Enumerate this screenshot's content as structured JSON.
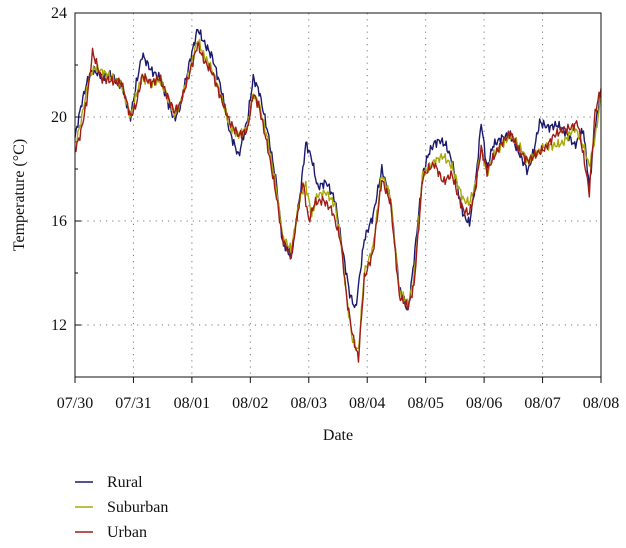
{
  "chart_data": {
    "type": "line",
    "xlabel": "Date",
    "ylabel": "Temperature (°C)",
    "x_ticks": [
      "07/30",
      "07/31",
      "08/01",
      "08/02",
      "08/03",
      "08/04",
      "08/05",
      "08/06",
      "08/07",
      "08/08"
    ],
    "y_ticks": [
      12,
      16,
      20,
      24
    ],
    "xlim": [
      0,
      9
    ],
    "ylim": [
      10,
      24
    ],
    "grid": true,
    "legend_position": "bottom-left",
    "x_unit": "days from 07/30 00:00",
    "series": [
      {
        "name": "Rural",
        "color": "#1c1a6e",
        "x": [
          0,
          0.1,
          0.2,
          0.3,
          0.45,
          0.6,
          0.8,
          0.95,
          1.05,
          1.15,
          1.3,
          1.45,
          1.6,
          1.7,
          1.8,
          1.95,
          2.1,
          2.2,
          2.35,
          2.5,
          2.65,
          2.8,
          2.95,
          3.05,
          3.15,
          3.3,
          3.45,
          3.55,
          3.7,
          3.85,
          3.95,
          4.05,
          4.15,
          4.3,
          4.45,
          4.55,
          4.7,
          4.8,
          4.95,
          5.1,
          5.25,
          5.4,
          5.55,
          5.7,
          5.8,
          5.95,
          6.05,
          6.15,
          6.25,
          6.35,
          6.45,
          6.55,
          6.65,
          6.75,
          6.85,
          6.95,
          7.05,
          7.15,
          7.3,
          7.45,
          7.6,
          7.75,
          7.85,
          7.95,
          8.1,
          8.25,
          8.4,
          8.55,
          8.7,
          8.8,
          8.9,
          9.0
        ],
        "values": [
          19.2,
          20.4,
          21.3,
          21.8,
          21.6,
          21.6,
          21.2,
          20.0,
          21.3,
          22.4,
          21.8,
          21.5,
          20.5,
          19.9,
          20.4,
          22.0,
          23.4,
          22.9,
          22.3,
          21.1,
          19.4,
          18.5,
          19.9,
          21.5,
          21.0,
          19.4,
          17.4,
          15.2,
          14.6,
          17.0,
          19.0,
          18.4,
          17.3,
          17.5,
          16.8,
          15.3,
          13.2,
          12.6,
          15.3,
          16.2,
          18.0,
          16.8,
          13.4,
          12.5,
          14.5,
          17.8,
          18.6,
          19.0,
          19.1,
          18.9,
          18.3,
          17.2,
          16.2,
          15.9,
          17.4,
          19.8,
          18.0,
          18.9,
          19.2,
          19.3,
          18.6,
          17.9,
          18.7,
          19.8,
          19.6,
          19.7,
          19.4,
          18.9,
          19.5,
          17.3,
          19.6,
          21.0
        ]
      },
      {
        "name": "Suburban",
        "color": "#a8a80a",
        "x": [
          0,
          0.1,
          0.25,
          0.35,
          0.5,
          0.65,
          0.8,
          0.95,
          1.05,
          1.15,
          1.3,
          1.45,
          1.6,
          1.7,
          1.8,
          1.95,
          2.1,
          2.2,
          2.35,
          2.5,
          2.65,
          2.8,
          2.95,
          3.05,
          3.15,
          3.3,
          3.45,
          3.55,
          3.7,
          3.85,
          3.95,
          4.05,
          4.15,
          4.3,
          4.45,
          4.55,
          4.65,
          4.75,
          4.85,
          4.95,
          5.1,
          5.25,
          5.4,
          5.55,
          5.7,
          5.8,
          5.95,
          6.05,
          6.15,
          6.3,
          6.45,
          6.55,
          6.65,
          6.75,
          6.85,
          6.95,
          7.05,
          7.15,
          7.3,
          7.45,
          7.6,
          7.75,
          7.9,
          8.05,
          8.2,
          8.35,
          8.55,
          8.7,
          8.8,
          8.9,
          9.0
        ],
        "values": [
          18.9,
          19.8,
          21.6,
          21.9,
          21.7,
          21.5,
          21.2,
          20.0,
          20.9,
          21.5,
          21.3,
          21.4,
          20.7,
          20.1,
          20.5,
          21.7,
          23.0,
          22.4,
          21.8,
          20.8,
          19.6,
          19.3,
          19.6,
          20.9,
          20.5,
          19.1,
          17.2,
          15.4,
          14.9,
          16.9,
          17.4,
          16.2,
          17.0,
          17.1,
          16.6,
          15.2,
          13.0,
          11.4,
          11.0,
          14.0,
          15.0,
          17.8,
          16.9,
          13.3,
          12.8,
          13.8,
          17.8,
          18.0,
          18.3,
          18.5,
          18.1,
          17.4,
          16.8,
          16.7,
          17.4,
          18.8,
          17.8,
          18.5,
          18.9,
          19.3,
          18.9,
          18.3,
          18.6,
          18.9,
          18.9,
          19.0,
          19.6,
          18.9,
          18.1,
          19.2,
          20.8
        ]
      },
      {
        "name": "Urban",
        "color": "#a11c14",
        "x": [
          0,
          0.1,
          0.2,
          0.3,
          0.45,
          0.6,
          0.8,
          0.95,
          1.05,
          1.15,
          1.3,
          1.45,
          1.6,
          1.7,
          1.8,
          1.95,
          2.1,
          2.2,
          2.35,
          2.5,
          2.65,
          2.8,
          2.95,
          3.05,
          3.15,
          3.3,
          3.45,
          3.55,
          3.7,
          3.8,
          3.9,
          4.0,
          4.1,
          4.25,
          4.4,
          4.55,
          4.65,
          4.75,
          4.85,
          4.95,
          5.1,
          5.25,
          5.4,
          5.55,
          5.7,
          5.8,
          5.95,
          6.05,
          6.15,
          6.3,
          6.45,
          6.55,
          6.65,
          6.75,
          6.85,
          6.95,
          7.05,
          7.15,
          7.3,
          7.45,
          7.6,
          7.75,
          7.9,
          8.05,
          8.2,
          8.35,
          8.5,
          8.6,
          8.7,
          8.8,
          8.9,
          9.0
        ],
        "values": [
          18.7,
          19.4,
          20.6,
          22.5,
          21.5,
          21.4,
          21.3,
          20.0,
          20.5,
          21.6,
          21.3,
          21.5,
          20.7,
          20.2,
          20.5,
          21.6,
          22.8,
          22.2,
          21.7,
          20.7,
          19.8,
          19.3,
          19.5,
          20.9,
          20.4,
          18.8,
          16.9,
          15.3,
          14.6,
          16.2,
          17.5,
          16.0,
          16.7,
          16.8,
          16.4,
          15.2,
          13.0,
          11.6,
          10.7,
          13.8,
          14.8,
          17.6,
          16.7,
          13.1,
          12.7,
          13.5,
          17.7,
          18.0,
          18.2,
          17.5,
          17.8,
          17.0,
          16.4,
          16.3,
          17.2,
          18.8,
          17.9,
          18.4,
          19.0,
          19.4,
          18.7,
          18.3,
          18.6,
          18.8,
          19.3,
          19.5,
          19.6,
          19.8,
          18.5,
          17.1,
          20.2,
          21.1
        ]
      }
    ]
  }
}
